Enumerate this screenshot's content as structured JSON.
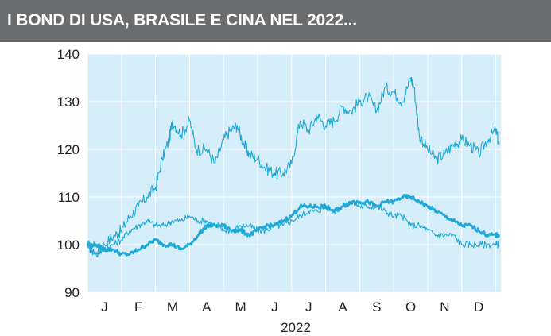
{
  "header": {
    "title": "I BOND DI USA, BRASILE E CINA NEL 2022..."
  },
  "colors": {
    "header_bg": "#6b6c6e",
    "plot_bg": "#d6eef9",
    "grid": "#ffffff",
    "line": "#1fa9d6"
  },
  "chart_data": {
    "type": "line",
    "title": "I BOND DI USA, BRASILE E CINA NEL 2022...",
    "xlabel": "2022",
    "ylabel": "",
    "ylim": [
      90,
      140
    ],
    "yticks": [
      "140",
      "130",
      "120",
      "110",
      "100",
      "90"
    ],
    "ytick_values": [
      140,
      130,
      120,
      110,
      100,
      90
    ],
    "months": [
      "J",
      "F",
      "M",
      "A",
      "M",
      "J",
      "J",
      "A",
      "S",
      "O",
      "N",
      "D"
    ],
    "xrange": [
      0,
      12.15
    ],
    "grid": true,
    "legend": "none",
    "series": [
      {
        "style": "thin",
        "x": [
          0.0,
          0.25,
          0.5,
          0.8,
          1.0,
          1.25,
          1.5,
          1.75,
          2.0,
          2.2,
          2.4,
          2.5,
          2.75,
          3.0,
          3.2,
          3.5,
          3.75,
          4.0,
          4.2,
          4.4,
          4.6,
          4.75,
          5.0,
          5.25,
          5.5,
          5.75,
          6.0,
          6.25,
          6.5,
          6.75,
          7.0,
          7.25,
          7.5,
          7.75,
          8.0,
          8.25,
          8.5,
          8.75,
          9.0,
          9.25,
          9.5,
          9.6,
          9.75,
          10.0,
          10.25,
          10.5,
          10.75,
          11.0,
          11.25,
          11.5,
          11.75,
          12.0,
          12.1
        ],
        "y": [
          100,
          98,
          100,
          102,
          103,
          106,
          108,
          110,
          112,
          118,
          122,
          126,
          123,
          126,
          120,
          120,
          117,
          122,
          124,
          125,
          121,
          119,
          118,
          116,
          115,
          115,
          117,
          126,
          124,
          127,
          125,
          126,
          129,
          128,
          130,
          131,
          128,
          133,
          132,
          130,
          135,
          133,
          123,
          120,
          118,
          119,
          121,
          122,
          121,
          119,
          122,
          124,
          121
        ]
      },
      {
        "style": "thin",
        "x": [
          0.0,
          0.25,
          0.5,
          0.75,
          1.0,
          1.25,
          1.5,
          1.75,
          2.0,
          2.25,
          2.5,
          2.75,
          3.0,
          3.25,
          3.5,
          3.75,
          4.0,
          4.25,
          4.5,
          4.75,
          5.0,
          5.25,
          5.5,
          5.75,
          6.0,
          6.25,
          6.5,
          6.75,
          7.0,
          7.25,
          7.5,
          7.75,
          8.0,
          8.25,
          8.5,
          8.75,
          9.0,
          9.25,
          9.5,
          9.75,
          10.0,
          10.25,
          10.5,
          10.75,
          11.0,
          11.25,
          11.5,
          11.75,
          12.0,
          12.1
        ],
        "y": [
          100,
          98,
          99,
          100,
          101,
          103,
          104,
          105,
          104,
          104,
          105,
          105,
          106,
          105,
          105,
          104,
          103,
          103,
          104,
          104,
          103,
          103,
          104,
          104,
          105,
          106,
          107,
          107,
          108,
          107,
          108,
          109,
          108,
          108,
          108,
          107,
          106,
          106,
          104,
          104,
          103,
          102,
          102,
          102,
          100,
          100,
          100,
          100,
          100,
          100
        ]
      },
      {
        "style": "thick",
        "x": [
          0.0,
          0.25,
          0.5,
          0.75,
          1.0,
          1.25,
          1.5,
          1.75,
          2.0,
          2.25,
          2.5,
          2.75,
          3.0,
          3.25,
          3.5,
          3.75,
          4.0,
          4.25,
          4.5,
          4.75,
          5.0,
          5.25,
          5.5,
          5.75,
          6.0,
          6.25,
          6.5,
          6.75,
          7.0,
          7.25,
          7.5,
          7.75,
          8.0,
          8.25,
          8.5,
          8.75,
          9.0,
          9.25,
          9.5,
          9.75,
          10.0,
          10.25,
          10.5,
          10.75,
          11.0,
          11.25,
          11.5,
          11.75,
          12.0,
          12.1
        ],
        "y": [
          100,
          100,
          99,
          99,
          98,
          98,
          99,
          100,
          101,
          100,
          100,
          99,
          100,
          102,
          104,
          104,
          104,
          103,
          103,
          102,
          103,
          104,
          104,
          105,
          106,
          108,
          108,
          108,
          108,
          107,
          108,
          109,
          109,
          109,
          108,
          109,
          109,
          110,
          110,
          109,
          108,
          107,
          106,
          105,
          104,
          104,
          103,
          102,
          102,
          102
        ]
      }
    ]
  }
}
